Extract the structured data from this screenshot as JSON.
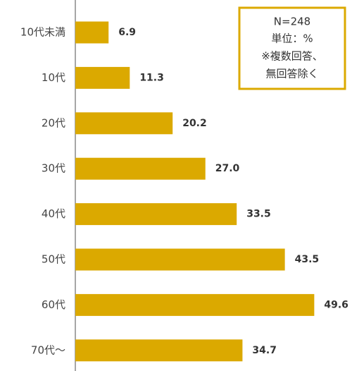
{
  "chart_data": {
    "type": "bar",
    "orientation": "horizontal",
    "categories": [
      "10代未満",
      "10代",
      "20代",
      "30代",
      "40代",
      "50代",
      "60代",
      "70代〜"
    ],
    "values": [
      6.9,
      11.3,
      20.2,
      27.0,
      33.5,
      43.5,
      49.6,
      34.7
    ],
    "value_labels": [
      "6.9",
      "11.3",
      "20.2",
      "27.0",
      "33.5",
      "43.5",
      "49.6",
      "34.7"
    ],
    "color": "#dba900",
    "xlim": [
      0,
      57
    ],
    "annotations": [
      "N=248",
      "単位：%",
      "※複数回答、",
      "無回答除く"
    ]
  }
}
